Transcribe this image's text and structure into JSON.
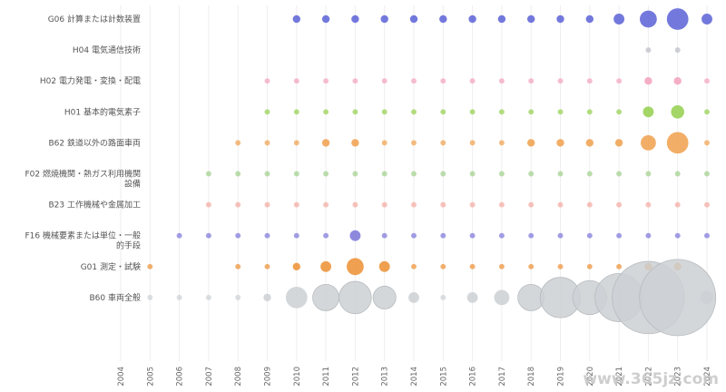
{
  "watermark": "www.365jz.com",
  "chart_data": {
    "type": "scatter",
    "title": "",
    "xlabel": "",
    "ylabel": "",
    "x": [
      "2004",
      "2005",
      "2006",
      "2007",
      "2008",
      "2009",
      "2010",
      "2011",
      "2012",
      "2013",
      "2014",
      "2015",
      "2016",
      "2017",
      "2018",
      "2019",
      "2020",
      "2021",
      "2022",
      "2023",
      "2024"
    ],
    "series": [
      {
        "name": "G06 計算または計数装置",
        "label_lines": [
          "G06 計算または計数装置"
        ],
        "color": "#5b62d6",
        "values": [
          0,
          0,
          0,
          0,
          0,
          0,
          1,
          1,
          1,
          1,
          1,
          1,
          1,
          1,
          1,
          1,
          1,
          2,
          5,
          8,
          2
        ]
      },
      {
        "name": "H04 電気通信技術",
        "label_lines": [
          "H04 電気通信技術"
        ],
        "color": "#b9bcc4",
        "values": [
          0,
          0,
          0,
          0,
          0,
          0,
          0,
          0,
          0,
          0,
          0,
          0,
          0,
          0,
          0,
          0,
          0,
          0,
          0.5,
          0.5,
          0
        ]
      },
      {
        "name": "H02 電力発電・変換・配電",
        "label_lines": [
          "H02 電力発電・変換・配電"
        ],
        "color": "#f2a0bd",
        "values": [
          0,
          0,
          0,
          0,
          0,
          0.5,
          0.5,
          0.5,
          0.5,
          0.5,
          0.5,
          0.5,
          0.5,
          0.5,
          0.5,
          0.5,
          0.5,
          0.5,
          1,
          1,
          0.5
        ]
      },
      {
        "name": "H01 基本的電気素子",
        "label_lines": [
          "H01 基本的電気素子"
        ],
        "color": "#93cf4c",
        "values": [
          0,
          0,
          0,
          0,
          0,
          0.5,
          0.5,
          0.5,
          0.5,
          0.5,
          0.5,
          0.5,
          0.5,
          0.5,
          0.5,
          0.5,
          0.5,
          0.5,
          2,
          3,
          0.5
        ]
      },
      {
        "name": "B62 鉄道以外の路面車両",
        "label_lines": [
          "B62 鉄道以外の路面車両"
        ],
        "color": "#f0a04b",
        "values": [
          0,
          0,
          0,
          0,
          0.5,
          0.5,
          0.5,
          1,
          1,
          0.5,
          0.5,
          0.5,
          0.5,
          0.5,
          1,
          1,
          1,
          1,
          4,
          8,
          0.5
        ]
      },
      {
        "name": "F02 燃焼機関・熱ガス利用機関設備",
        "label_lines": [
          "F02 燃焼機関・熱ガス利用機関",
          "設備"
        ],
        "color": "#9fcf8a",
        "values": [
          0,
          0,
          0,
          0.5,
          0.5,
          0.5,
          0.5,
          0.5,
          0.5,
          0.5,
          0.5,
          0.5,
          0.5,
          0.5,
          0.5,
          0.5,
          0.5,
          0.5,
          0.5,
          0.5,
          0.5
        ]
      },
      {
        "name": "B23 工作機械や金属加工",
        "label_lines": [
          "B23 工作機械や金属加工"
        ],
        "color": "#f4a8a0",
        "values": [
          0,
          0,
          0,
          0.5,
          0.5,
          0.5,
          0.5,
          0.5,
          0.5,
          0.5,
          0.5,
          0.5,
          0.5,
          0.5,
          0.5,
          0.5,
          0.5,
          0.5,
          0.5,
          0.5,
          0.5
        ]
      },
      {
        "name": "F16 機械要素または単位・一般的手段",
        "label_lines": [
          "F16 機械要素または単位・一般",
          "的手段"
        ],
        "color": "#7b74d8",
        "values": [
          0,
          0,
          0.5,
          0.5,
          0.5,
          0.5,
          0.5,
          0.5,
          2,
          0.5,
          0.5,
          0.5,
          0.5,
          0.5,
          0.5,
          0.5,
          0.5,
          0.5,
          0.5,
          0.5,
          0.5
        ]
      },
      {
        "name": "G01 測定・試験",
        "label_lines": [
          "G01 測定・試験"
        ],
        "color": "#ec8f32",
        "values": [
          0,
          0.5,
          0,
          0,
          0.5,
          0.5,
          1,
          2,
          5,
          2,
          0.5,
          0.5,
          0.5,
          0.5,
          0.5,
          0.5,
          0.5,
          0.5,
          1,
          1,
          0
        ]
      },
      {
        "name": "B60 車両全般",
        "label_lines": [
          "B60 車両全般"
        ],
        "color": "#ccd0d3",
        "values": [
          0,
          0.5,
          0.5,
          0.5,
          0.5,
          1,
          8,
          12,
          18,
          9,
          2,
          0.5,
          2,
          4,
          12,
          28,
          20,
          40,
          90,
          100,
          3
        ]
      }
    ]
  }
}
